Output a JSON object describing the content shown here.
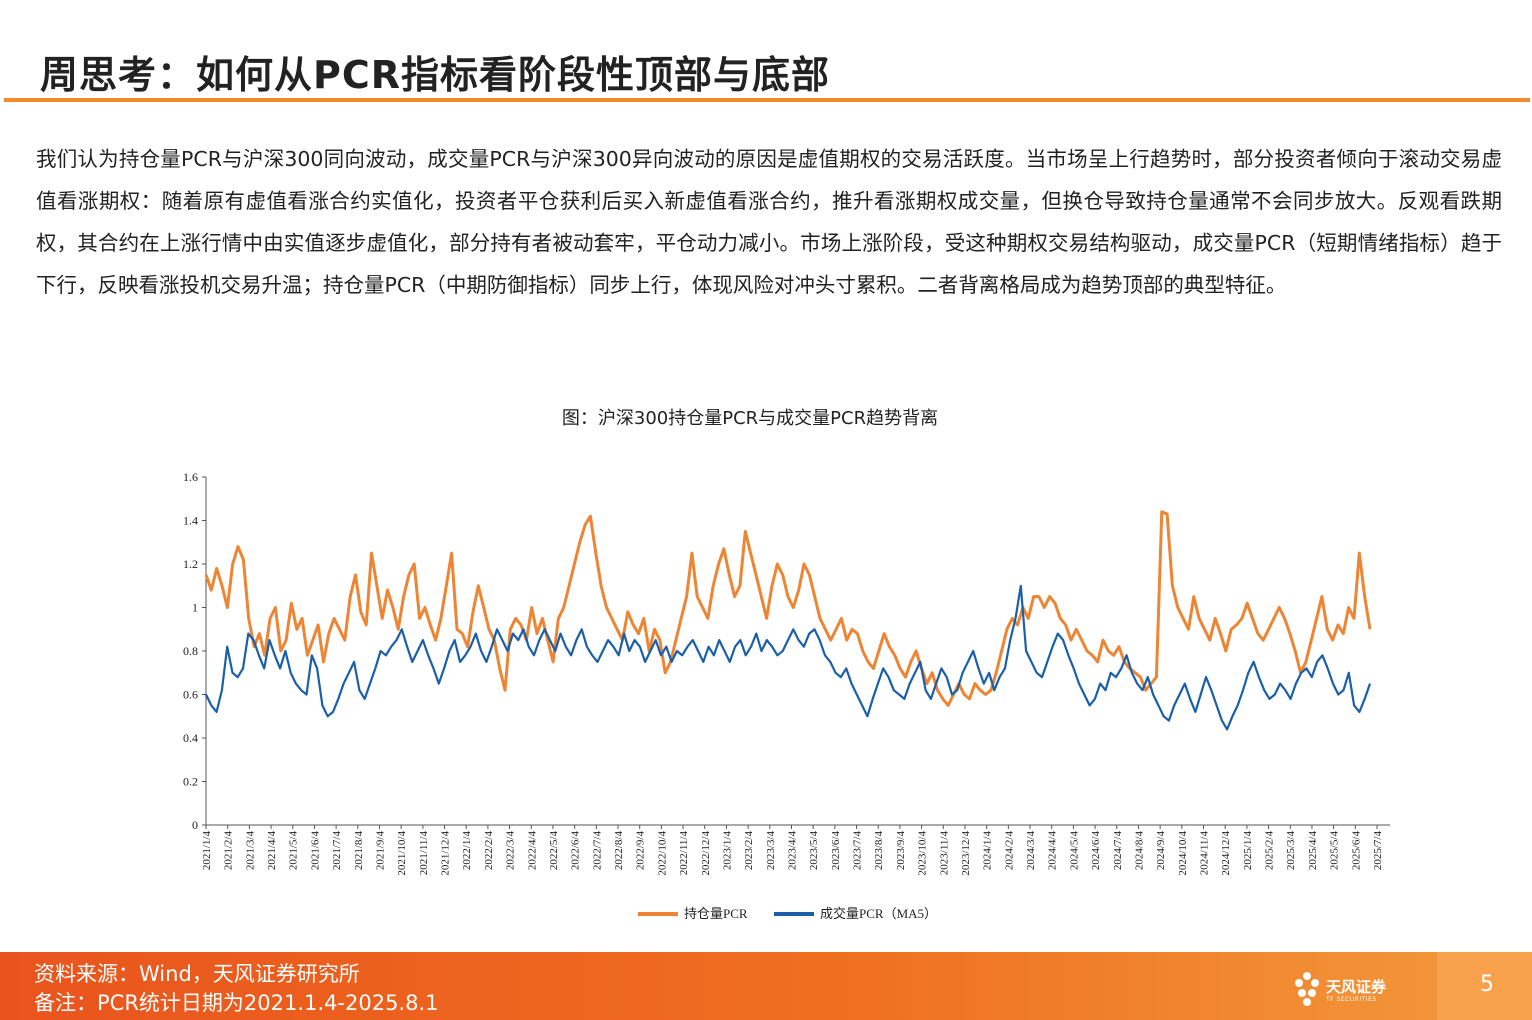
{
  "header": {
    "title": "周思考：如何从PCR指标看阶段性顶部与底部"
  },
  "body": {
    "paragraph": "我们认为持仓量PCR与沪深300同向波动，成交量PCR与沪深300异向波动的原因是虚值期权的交易活跃度。当市场呈上行趋势时，部分投资者倾向于滚动交易虚值看涨期权：随着原有虚值看涨合约实值化，投资者平仓获利后买入新虚值看涨合约，推升看涨期权成交量，但换仓导致持仓量通常不会同步放大。反观看跌期权，其合约在上涨行情中由实值逐步虚值化，部分持有者被动套牢，平仓动力减小。市场上涨阶段，受这种期权交易结构驱动，成交量PCR（短期情绪指标）趋于下行，反映看涨投机交易升温；持仓量PCR（中期防御指标）同步上行，体现风险对冲头寸累积。二者背离格局成为趋势顶部的典型特征。"
  },
  "figure": {
    "caption": "图：沪深300持仓量PCR与成交量PCR趋势背离"
  },
  "chart_data": {
    "type": "line",
    "title": "图：沪深300持仓量PCR与成交量PCR趋势背离",
    "ylim": [
      0,
      1.6
    ],
    "yticks": [
      "0",
      "0.2",
      "0.4",
      "0.6",
      "0.8",
      "1",
      "1.2",
      "1.4",
      "1.6"
    ],
    "x_ticks": [
      "2021/1/4",
      "2021/2/4",
      "2021/3/4",
      "2021/4/4",
      "2021/5/4",
      "2021/6/4",
      "2021/7/4",
      "2021/8/4",
      "2021/9/4",
      "2021/10/4",
      "2021/11/4",
      "2021/12/4",
      "2022/1/4",
      "2022/2/4",
      "2022/3/4",
      "2022/4/4",
      "2022/5/4",
      "2022/6/4",
      "2022/7/4",
      "2022/8/4",
      "2022/9/4",
      "2022/10/4",
      "2022/11/4",
      "2022/12/4",
      "2023/1/4",
      "2023/2/4",
      "2023/3/4",
      "2023/4/4",
      "2023/5/4",
      "2023/6/4",
      "2023/7/4",
      "2023/8/4",
      "2023/9/4",
      "2023/10/4",
      "2023/11/4",
      "2023/12/4",
      "2024/1/4",
      "2024/2/4",
      "2024/3/4",
      "2024/4/4",
      "2024/5/4",
      "2024/6/4",
      "2024/7/4",
      "2024/8/4",
      "2024/9/4",
      "2024/10/4",
      "2024/11/4",
      "2024/12/4",
      "2025/1/4",
      "2025/2/4",
      "2025/3/4",
      "2025/4/4",
      "2025/5/4",
      "2025/6/4",
      "2025/7/4"
    ],
    "grid": false,
    "legend": "bottom",
    "series": [
      {
        "name": "持仓量PCR",
        "color": "#ee8534",
        "values": [
          1.15,
          1.08,
          1.18,
          1.1,
          1.0,
          1.2,
          1.28,
          1.22,
          0.95,
          0.82,
          0.88,
          0.78,
          0.95,
          1.0,
          0.8,
          0.85,
          1.02,
          0.9,
          0.95,
          0.78,
          0.85,
          0.92,
          0.75,
          0.88,
          0.95,
          0.9,
          0.85,
          1.05,
          1.15,
          0.98,
          0.92,
          1.25,
          1.1,
          0.95,
          1.08,
          1.0,
          0.9,
          1.05,
          1.15,
          1.2,
          0.95,
          1.0,
          0.92,
          0.85,
          0.95,
          1.1,
          1.25,
          0.9,
          0.88,
          0.82,
          0.98,
          1.1,
          1.0,
          0.9,
          0.85,
          0.72,
          0.62,
          0.9,
          0.95,
          0.92,
          0.85,
          1.0,
          0.88,
          0.95,
          0.85,
          0.75,
          0.95,
          1.0,
          1.1,
          1.2,
          1.3,
          1.38,
          1.42,
          1.25,
          1.1,
          1.0,
          0.95,
          0.9,
          0.85,
          0.98,
          0.92,
          0.88,
          0.95,
          0.8,
          0.9,
          0.85,
          0.7,
          0.75,
          0.85,
          0.95,
          1.05,
          1.25,
          1.05,
          1.0,
          0.95,
          1.1,
          1.2,
          1.27,
          1.15,
          1.05,
          1.1,
          1.35,
          1.25,
          1.15,
          1.05,
          0.95,
          1.1,
          1.2,
          1.15,
          1.05,
          1.0,
          1.08,
          1.2,
          1.15,
          1.05,
          0.95,
          0.9,
          0.85,
          0.9,
          0.95,
          0.85,
          0.9,
          0.88,
          0.8,
          0.75,
          0.72,
          0.8,
          0.88,
          0.82,
          0.78,
          0.72,
          0.68,
          0.75,
          0.8,
          0.72,
          0.65,
          0.7,
          0.62,
          0.58,
          0.55,
          0.6,
          0.65,
          0.6,
          0.58,
          0.65,
          0.62,
          0.6,
          0.62,
          0.7,
          0.8,
          0.9,
          0.95,
          0.92,
          1.0,
          0.95,
          1.05,
          1.05,
          1.0,
          1.05,
          1.02,
          0.95,
          0.92,
          0.85,
          0.9,
          0.85,
          0.8,
          0.78,
          0.75,
          0.85,
          0.8,
          0.78,
          0.82,
          0.75,
          0.72,
          0.7,
          0.68,
          0.62,
          0.65,
          0.68,
          1.44,
          1.43,
          1.1,
          1.0,
          0.95,
          0.9,
          1.05,
          0.95,
          0.9,
          0.85,
          0.95,
          0.88,
          0.8,
          0.9,
          0.92,
          0.95,
          1.02,
          0.95,
          0.88,
          0.85,
          0.9,
          0.95,
          1.0,
          0.95,
          0.88,
          0.8,
          0.7,
          0.75,
          0.85,
          0.95,
          1.05,
          0.9,
          0.85,
          0.92,
          0.88,
          1.0,
          0.95,
          1.25,
          1.05,
          0.9
        ]
      },
      {
        "name": "成交量PCR（MA5）",
        "color": "#1a5fa8",
        "values": [
          0.6,
          0.55,
          0.52,
          0.62,
          0.82,
          0.7,
          0.68,
          0.72,
          0.88,
          0.85,
          0.78,
          0.72,
          0.85,
          0.78,
          0.72,
          0.8,
          0.7,
          0.65,
          0.62,
          0.6,
          0.78,
          0.72,
          0.55,
          0.5,
          0.52,
          0.58,
          0.65,
          0.7,
          0.75,
          0.62,
          0.58,
          0.65,
          0.72,
          0.8,
          0.78,
          0.82,
          0.85,
          0.9,
          0.82,
          0.75,
          0.8,
          0.85,
          0.78,
          0.72,
          0.65,
          0.72,
          0.8,
          0.85,
          0.75,
          0.78,
          0.82,
          0.88,
          0.8,
          0.75,
          0.82,
          0.9,
          0.85,
          0.8,
          0.88,
          0.85,
          0.9,
          0.82,
          0.78,
          0.85,
          0.9,
          0.85,
          0.8,
          0.88,
          0.82,
          0.78,
          0.85,
          0.9,
          0.82,
          0.78,
          0.75,
          0.8,
          0.85,
          0.82,
          0.78,
          0.88,
          0.8,
          0.85,
          0.82,
          0.75,
          0.8,
          0.85,
          0.78,
          0.82,
          0.75,
          0.8,
          0.78,
          0.82,
          0.85,
          0.8,
          0.75,
          0.82,
          0.78,
          0.85,
          0.8,
          0.75,
          0.82,
          0.85,
          0.78,
          0.82,
          0.88,
          0.8,
          0.85,
          0.82,
          0.78,
          0.8,
          0.85,
          0.9,
          0.85,
          0.82,
          0.88,
          0.9,
          0.85,
          0.78,
          0.75,
          0.7,
          0.68,
          0.72,
          0.65,
          0.6,
          0.55,
          0.5,
          0.58,
          0.65,
          0.72,
          0.68,
          0.62,
          0.6,
          0.58,
          0.65,
          0.7,
          0.75,
          0.62,
          0.58,
          0.65,
          0.72,
          0.68,
          0.6,
          0.62,
          0.7,
          0.75,
          0.8,
          0.72,
          0.65,
          0.7,
          0.62,
          0.68,
          0.72,
          0.85,
          0.95,
          1.1,
          0.8,
          0.75,
          0.7,
          0.68,
          0.75,
          0.82,
          0.88,
          0.85,
          0.78,
          0.72,
          0.65,
          0.6,
          0.55,
          0.58,
          0.65,
          0.62,
          0.7,
          0.68,
          0.72,
          0.78,
          0.7,
          0.65,
          0.62,
          0.68,
          0.6,
          0.55,
          0.5,
          0.48,
          0.55,
          0.6,
          0.65,
          0.58,
          0.52,
          0.6,
          0.68,
          0.62,
          0.55,
          0.48,
          0.44,
          0.5,
          0.55,
          0.62,
          0.7,
          0.75,
          0.68,
          0.62,
          0.58,
          0.6,
          0.65,
          0.62,
          0.58,
          0.65,
          0.7,
          0.72,
          0.68,
          0.75,
          0.78,
          0.72,
          0.65,
          0.6,
          0.62,
          0.7,
          0.55,
          0.52,
          0.58,
          0.65
        ]
      }
    ]
  },
  "footer": {
    "source": "资料来源：Wind，天风证券研究所",
    "note": "备注：PCR统计日期为2021.1.4-2025.8.1",
    "logo_text": "天风证券",
    "logo_sub": "TF SECURITIES",
    "page_number": "5"
  }
}
